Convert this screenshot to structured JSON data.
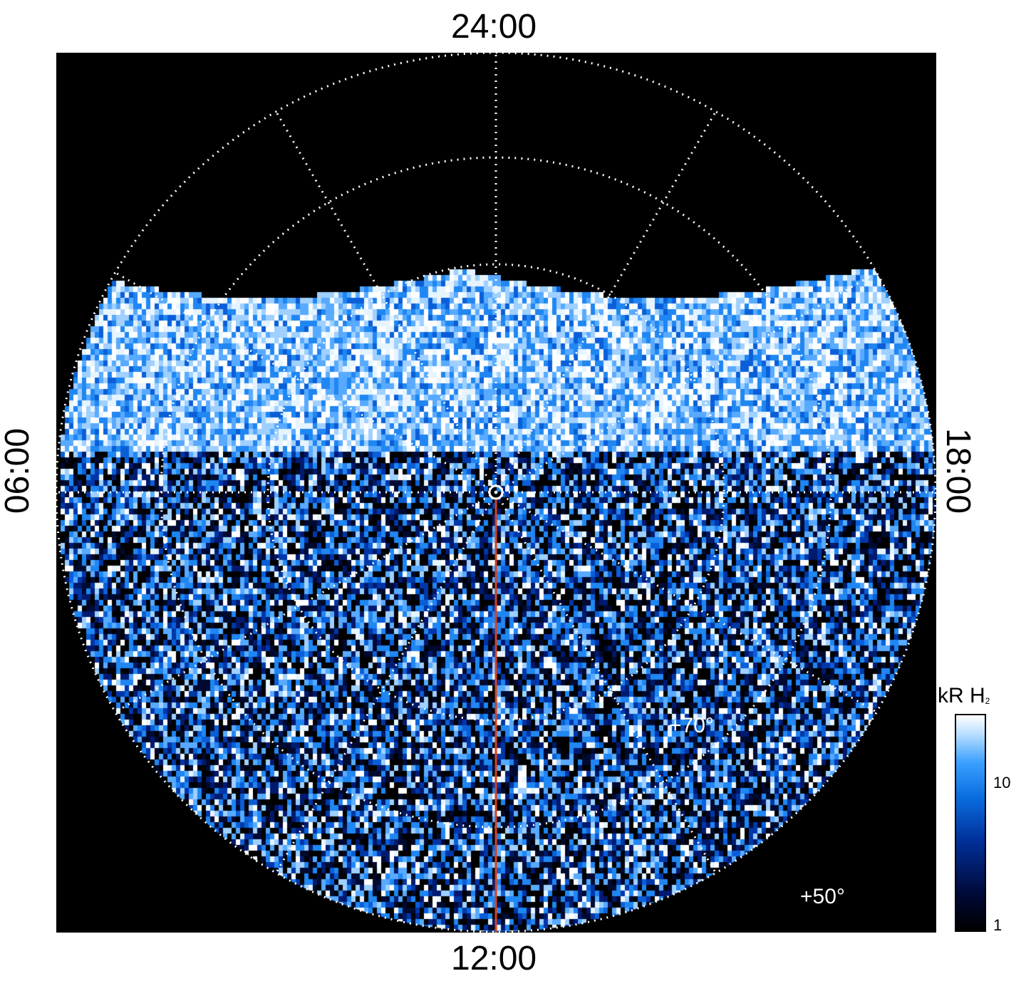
{
  "local_time_labels": {
    "top": "24:00",
    "bottom": "12:00",
    "left": "06:00",
    "right": "18:00"
  },
  "latitude_labels": {
    "inner": "+70°",
    "outer": "+50°"
  },
  "colorbar": {
    "title": "kR H",
    "title_subscript": "2",
    "ticks": [
      "10",
      "1"
    ],
    "scale": "log",
    "range": [
      1,
      30
    ]
  },
  "colors": {
    "background": "#000000",
    "grid": "#ffffff",
    "meridian_line": "#d8401c",
    "emission_low": "#001040",
    "emission_mid": "#0a6ee0",
    "emission_high": "#ffffff"
  },
  "projection": {
    "type": "polar",
    "grid": true
  }
}
